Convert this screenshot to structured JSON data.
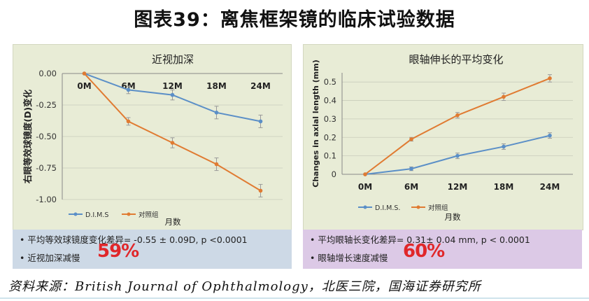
{
  "page": {
    "title": "图表39：离焦框架镜的临床试验数据",
    "source": "资料来源：British Journal of Ophthalmology，北医三院，国海证券研究所"
  },
  "chart_data": [
    {
      "type": "line",
      "title": "近视加深",
      "ylabel": "右眼等效球镜度(D)变化",
      "xlabel": "月数",
      "categories": [
        "0M",
        "6M",
        "12M",
        "18M",
        "24M"
      ],
      "yticks": [
        "0.00",
        "-0.25",
        "-0.50",
        "-0.75",
        "-1.00"
      ],
      "ylim": [
        -1.0,
        0.0
      ],
      "x_axis_position": "top",
      "grid": true,
      "legend": "bottom-left",
      "series": [
        {
          "name": "D.I.M.S",
          "color": "#5b8fc7",
          "values": [
            0.0,
            -0.13,
            -0.17,
            -0.31,
            -0.38
          ],
          "errors": [
            0,
            0.03,
            0.04,
            0.05,
            0.05
          ]
        },
        {
          "name": "对照组",
          "color": "#e07b32",
          "values": [
            0.0,
            -0.38,
            -0.55,
            -0.72,
            -0.93
          ],
          "errors": [
            0,
            0.03,
            0.04,
            0.05,
            0.05
          ]
        }
      ]
    },
    {
      "type": "line",
      "title": "眼轴伸长的平均变化",
      "ylabel": "Changes in axial length (mm)",
      "xlabel": "月数",
      "categories": [
        "0M",
        "6M",
        "12M",
        "18M",
        "24M"
      ],
      "yticks": [
        "0",
        "0.1",
        "0.2",
        "0.3",
        "0.4",
        "0.5"
      ],
      "ylim": [
        0,
        0.55
      ],
      "x_axis_position": "bottom",
      "grid": true,
      "legend": "bottom-left",
      "series": [
        {
          "name": "D.I.M.S.",
          "color": "#5b8fc7",
          "values": [
            0.0,
            0.03,
            0.1,
            0.15,
            0.21
          ],
          "errors": [
            0,
            0.01,
            0.015,
            0.015,
            0.015
          ]
        },
        {
          "name": "对照组",
          "color": "#e07b32",
          "values": [
            0.0,
            0.19,
            0.32,
            0.42,
            0.52
          ],
          "errors": [
            0,
            0.01,
            0.015,
            0.02,
            0.02
          ]
        }
      ]
    }
  ],
  "summary_left": {
    "line1": "平均等效球镜度变化差异= -0.55 ± 0.09D, p <0.0001",
    "line2": "近视加深减慢",
    "percent": "59%"
  },
  "summary_right": {
    "line1": "平均眼轴长变化差异= 0.31± 0.04 mm, p < 0.0001",
    "line2": "眼轴增长速度减慢",
    "percent": "60%"
  }
}
